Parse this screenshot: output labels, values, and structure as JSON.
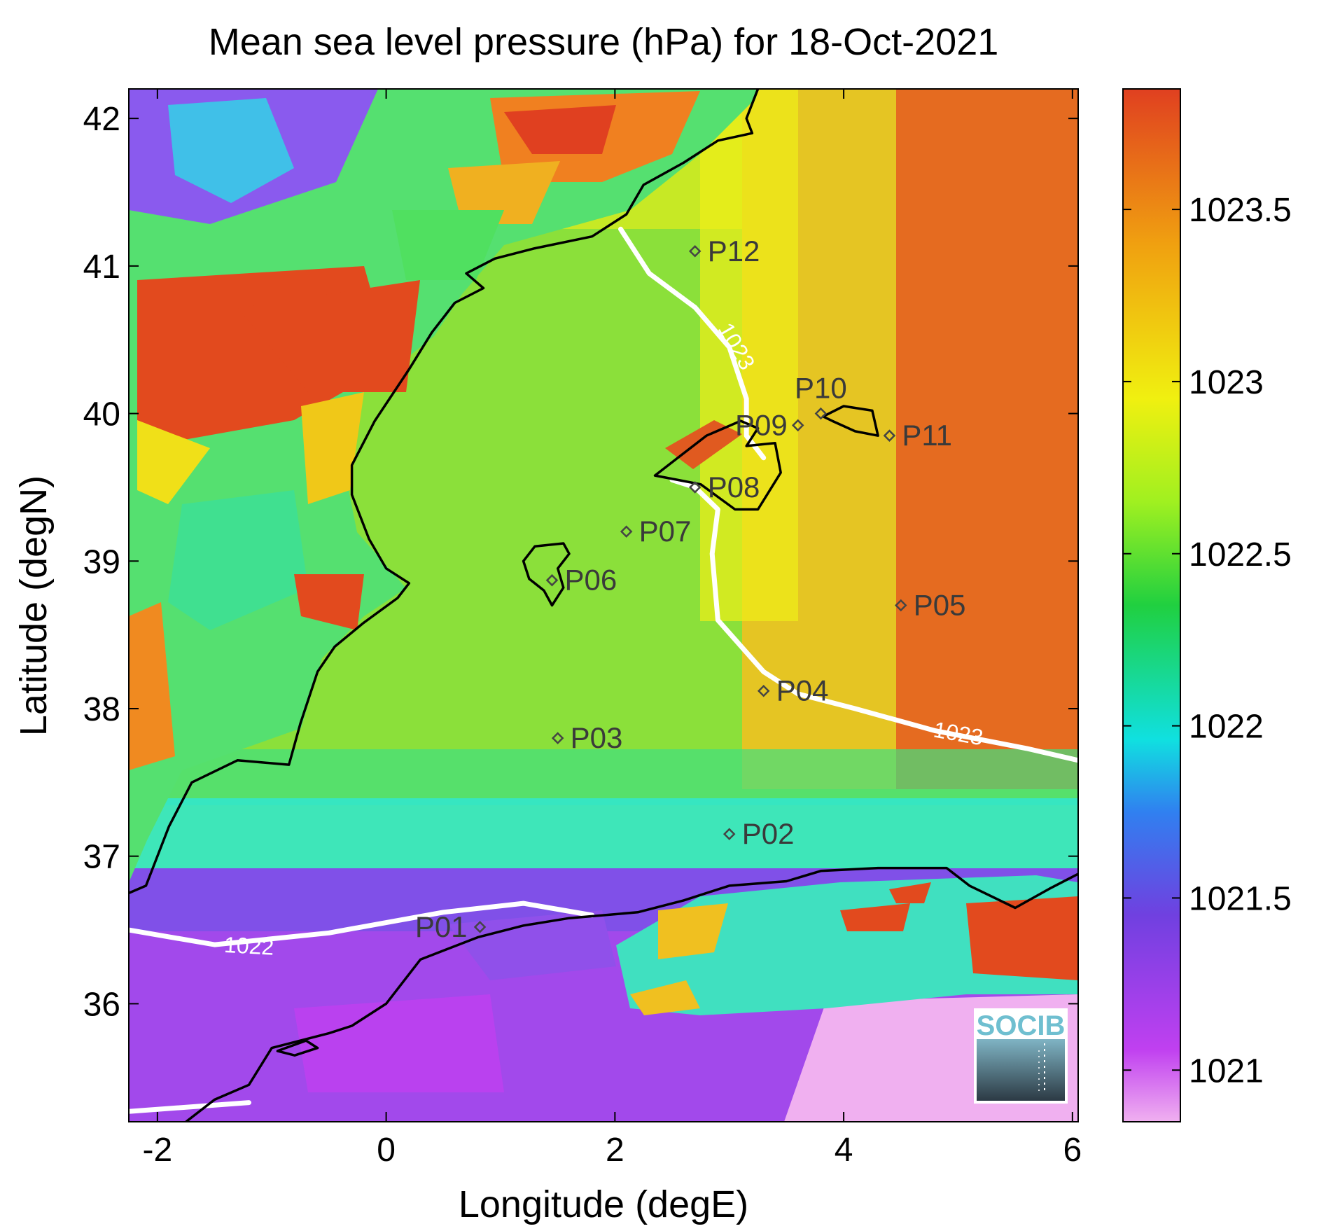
{
  "title": "Mean sea level pressure (hPa) for 18-Oct-2021",
  "xlabel": "Longitude (degE)",
  "ylabel": "Latitude (degN)",
  "xlim": [
    -2.25,
    6.05
  ],
  "ylim": [
    35.2,
    42.2
  ],
  "xticks": [
    {
      "value": -2,
      "label": "-2"
    },
    {
      "value": 0,
      "label": "0"
    },
    {
      "value": 2,
      "label": "2"
    },
    {
      "value": 4,
      "label": "4"
    },
    {
      "value": 6,
      "label": "6"
    }
  ],
  "yticks": [
    {
      "value": 36,
      "label": "36"
    },
    {
      "value": 37,
      "label": "37"
    },
    {
      "value": 38,
      "label": "38"
    },
    {
      "value": 39,
      "label": "39"
    },
    {
      "value": 40,
      "label": "40"
    },
    {
      "value": 41,
      "label": "41"
    },
    {
      "value": 42,
      "label": "42"
    }
  ],
  "colorbar": {
    "range": [
      1020.85,
      1023.85
    ],
    "ticks": [
      {
        "value": 1021,
        "label": "1021"
      },
      {
        "value": 1021.5,
        "label": "1021.5"
      },
      {
        "value": 1022,
        "label": "1022"
      },
      {
        "value": 1022.5,
        "label": "1022.5"
      },
      {
        "value": 1023,
        "label": "1023"
      },
      {
        "value": 1023.5,
        "label": "1023.5"
      }
    ],
    "colors": [
      "#f0b0f0",
      "#c040f0",
      "#7040e0",
      "#3080f0",
      "#10e0e0",
      "#20d040",
      "#a0f020",
      "#f0f010",
      "#f0a010",
      "#e04020"
    ]
  },
  "stations": [
    {
      "id": "P01",
      "lon": 0.82,
      "lat": 36.52
    },
    {
      "id": "P02",
      "lon": 3.0,
      "lat": 37.15
    },
    {
      "id": "P03",
      "lon": 1.5,
      "lat": 37.8
    },
    {
      "id": "P04",
      "lon": 3.3,
      "lat": 38.12
    },
    {
      "id": "P05",
      "lon": 4.5,
      "lat": 38.7
    },
    {
      "id": "P06",
      "lon": 1.45,
      "lat": 38.87
    },
    {
      "id": "P07",
      "lon": 2.1,
      "lat": 39.2
    },
    {
      "id": "P08",
      "lon": 2.7,
      "lat": 39.5
    },
    {
      "id": "P09",
      "lon": 3.6,
      "lat": 39.92
    },
    {
      "id": "P10",
      "lon": 3.8,
      "lat": 40.0
    },
    {
      "id": "P11",
      "lon": 4.4,
      "lat": 39.85
    },
    {
      "id": "P12",
      "lon": 2.7,
      "lat": 41.1
    }
  ],
  "contours": [
    {
      "level": "1022",
      "points": [
        [
          -2.25,
          36.5
        ],
        [
          -1.5,
          36.4
        ],
        [
          -0.5,
          36.48
        ],
        [
          0.5,
          36.62
        ],
        [
          1.2,
          36.68
        ],
        [
          1.8,
          36.6
        ]
      ]
    },
    {
      "level": "1022",
      "points": [
        [
          -2.25,
          35.27
        ],
        [
          -1.2,
          35.33
        ]
      ]
    },
    {
      "level": "1023",
      "points": [
        [
          2.05,
          41.25
        ],
        [
          2.3,
          40.95
        ],
        [
          2.7,
          40.72
        ],
        [
          3.0,
          40.45
        ],
        [
          3.15,
          40.1
        ],
        [
          3.15,
          39.85
        ],
        [
          3.3,
          39.7
        ]
      ]
    },
    {
      "level": "1023",
      "points": [
        [
          2.5,
          39.55
        ],
        [
          2.7,
          39.5
        ],
        [
          2.9,
          39.35
        ],
        [
          2.85,
          39.05
        ],
        [
          2.9,
          38.6
        ],
        [
          3.3,
          38.25
        ],
        [
          3.6,
          38.1
        ],
        [
          4.1,
          38.0
        ],
        [
          4.8,
          37.85
        ],
        [
          5.6,
          37.73
        ],
        [
          6.05,
          37.65
        ]
      ]
    }
  ],
  "contour_labels": [
    {
      "text": "1022",
      "lon": -1.2,
      "lat": 36.38,
      "angle": 3
    },
    {
      "text": "1023",
      "lon": 3.05,
      "lat": 40.45,
      "angle": 60
    },
    {
      "text": "1023",
      "lon": 5.0,
      "lat": 37.82,
      "angle": 10
    }
  ],
  "coastlines": [
    {
      "closed": false,
      "points": [
        [
          -2.25,
          36.75
        ],
        [
          -2.1,
          36.8
        ],
        [
          -1.9,
          37.2
        ],
        [
          -1.7,
          37.5
        ],
        [
          -1.3,
          37.65
        ],
        [
          -0.85,
          37.62
        ],
        [
          -0.75,
          37.9
        ],
        [
          -0.6,
          38.25
        ],
        [
          -0.45,
          38.42
        ],
        [
          -0.2,
          38.58
        ],
        [
          0.1,
          38.75
        ],
        [
          0.2,
          38.85
        ],
        [
          0.0,
          38.95
        ],
        [
          -0.15,
          39.15
        ],
        [
          -0.3,
          39.45
        ],
        [
          -0.3,
          39.65
        ],
        [
          -0.1,
          39.95
        ],
        [
          0.2,
          40.3
        ],
        [
          0.4,
          40.55
        ],
        [
          0.6,
          40.75
        ],
        [
          0.85,
          40.85
        ],
        [
          0.7,
          40.95
        ],
        [
          0.95,
          41.05
        ],
        [
          1.3,
          41.12
        ],
        [
          1.8,
          41.2
        ],
        [
          2.1,
          41.35
        ],
        [
          2.25,
          41.55
        ],
        [
          2.6,
          41.7
        ],
        [
          2.9,
          41.85
        ],
        [
          3.2,
          41.9
        ],
        [
          3.15,
          42.0
        ],
        [
          3.25,
          42.2
        ]
      ]
    },
    {
      "closed": false,
      "points": [
        [
          -1.75,
          35.2
        ],
        [
          -1.5,
          35.35
        ],
        [
          -1.2,
          35.45
        ],
        [
          -1.0,
          35.7
        ],
        [
          -0.5,
          35.8
        ],
        [
          -0.3,
          35.85
        ],
        [
          0.0,
          36.0
        ],
        [
          0.3,
          36.3
        ],
        [
          0.8,
          36.45
        ],
        [
          1.2,
          36.53
        ],
        [
          1.6,
          36.58
        ],
        [
          2.2,
          36.62
        ],
        [
          2.6,
          36.7
        ],
        [
          3.0,
          36.8
        ],
        [
          3.5,
          36.83
        ],
        [
          3.8,
          36.9
        ],
        [
          4.3,
          36.92
        ],
        [
          4.9,
          36.92
        ],
        [
          5.1,
          36.8
        ],
        [
          5.5,
          36.65
        ],
        [
          5.8,
          36.78
        ],
        [
          6.05,
          36.88
        ]
      ]
    },
    {
      "closed": true,
      "points": [
        [
          2.35,
          39.58
        ],
        [
          2.55,
          39.7
        ],
        [
          2.8,
          39.85
        ],
        [
          3.1,
          39.95
        ],
        [
          3.25,
          39.9
        ],
        [
          3.15,
          39.78
        ],
        [
          3.4,
          39.8
        ],
        [
          3.45,
          39.6
        ],
        [
          3.25,
          39.35
        ],
        [
          3.05,
          39.35
        ],
        [
          2.75,
          39.52
        ],
        [
          2.55,
          39.55
        ]
      ]
    },
    {
      "closed": true,
      "points": [
        [
          3.82,
          39.98
        ],
        [
          4.0,
          40.05
        ],
        [
          4.25,
          40.02
        ],
        [
          4.3,
          39.85
        ],
        [
          4.1,
          39.88
        ],
        [
          3.9,
          39.95
        ]
      ]
    },
    {
      "closed": true,
      "points": [
        [
          1.2,
          39.0
        ],
        [
          1.3,
          39.1
        ],
        [
          1.55,
          39.12
        ],
        [
          1.6,
          39.05
        ],
        [
          1.5,
          38.95
        ],
        [
          1.55,
          38.82
        ],
        [
          1.45,
          38.7
        ],
        [
          1.38,
          38.8
        ],
        [
          1.25,
          38.88
        ]
      ]
    },
    {
      "closed": true,
      "points": [
        [
          -0.95,
          35.68
        ],
        [
          -0.7,
          35.75
        ],
        [
          -0.6,
          35.7
        ],
        [
          -0.8,
          35.65
        ]
      ]
    }
  ],
  "logo": {
    "text": "SOCIB"
  }
}
